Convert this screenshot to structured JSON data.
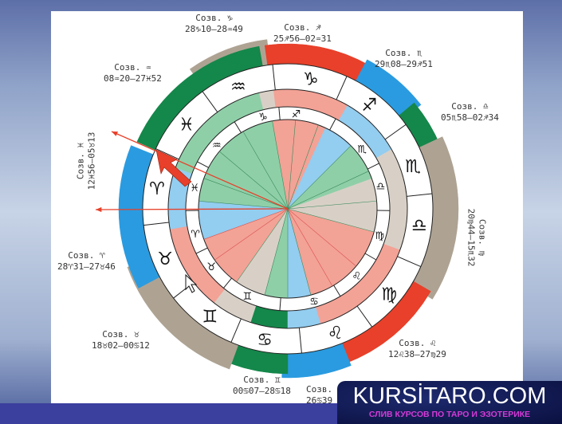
{
  "colors": {
    "red": "#e8402a",
    "blue": "#2a9be0",
    "green": "#14874a",
    "brown": "#aea393",
    "pink": "#f3a296",
    "lightblue": "#93cdf0",
    "lightgreen": "#8fcfa8",
    "lightbrown": "#d8d0c6",
    "arrow": "#e8402a"
  },
  "zodiac_outer": [
    "♈",
    "♓",
    "♒",
    "♑",
    "♐",
    "♏",
    "♎",
    "♍",
    "♌",
    "♋",
    "♊",
    "♉"
  ],
  "zodiac_inner": [
    "♑",
    "♐",
    "♏",
    "♎",
    "♍",
    "♌",
    "♋",
    "♊",
    "♉",
    "♈",
    "♓",
    "♒"
  ],
  "constellations": [
    {
      "title": "Созв. ♑",
      "range": "28♑10–28♒49"
    },
    {
      "title": "Созв. ♐",
      "range": "25♐56–02♒31"
    },
    {
      "title": "Созв. ♏",
      "range": "29♏08–29♐51"
    },
    {
      "title": "Созв. ♎",
      "range": "05♏58–02♐34"
    },
    {
      "title": "Созв. ♍",
      "range": "20♍44–15♏32"
    },
    {
      "title": "Созв. ♌",
      "range": "12♌38–27♍29"
    },
    {
      "title": "Созв.",
      "range": "26♋39"
    },
    {
      "title": "Созв. ♊",
      "range": "00♋07–28♋18"
    },
    {
      "title": "Созв. ♉",
      "range": "18♉02–00♋12"
    },
    {
      "title": "Созв. ♈",
      "range": "28♈31–27♉46"
    },
    {
      "title": "Созв. ♓",
      "range": "12♓56–05♉13"
    },
    {
      "title": "Созв. ♒",
      "range": "08♒20–27♓52"
    }
  ],
  "watermark": {
    "title": "KURSİTARO.COM",
    "subtitle": "СЛИВ КУРСОВ ПО ТАРО И ЭЗОТЕРИКЕ"
  }
}
